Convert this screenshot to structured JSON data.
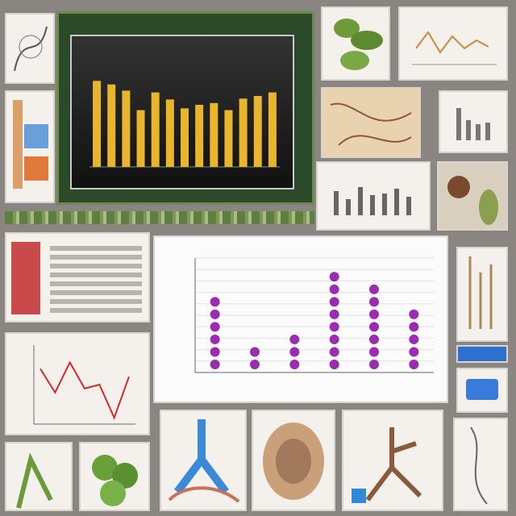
{
  "chart_data": [
    {
      "type": "bar",
      "values": [
        97,
        93,
        86,
        64,
        84,
        76,
        66,
        70,
        72,
        64,
        77,
        80,
        84
      ],
      "ylim": [
        0,
        120
      ],
      "colors": {
        "bar": "#e8b52c",
        "background": "#1b1b1b"
      }
    },
    {
      "type": "scatter",
      "values": [
        6,
        2,
        3,
        8,
        7,
        5
      ],
      "ylim": [
        0,
        10
      ],
      "colors": {
        "point": "#9b2bb0"
      }
    },
    {
      "type": "line",
      "values": [
        70,
        40,
        78,
        45,
        50,
        8,
        60
      ],
      "ylim": [
        0,
        100
      ],
      "colors": {
        "line": "#d12b2b"
      }
    }
  ],
  "colors": {
    "background": "#8a8580",
    "tile": "#f4f1ec",
    "green": "#6f8a4c"
  }
}
